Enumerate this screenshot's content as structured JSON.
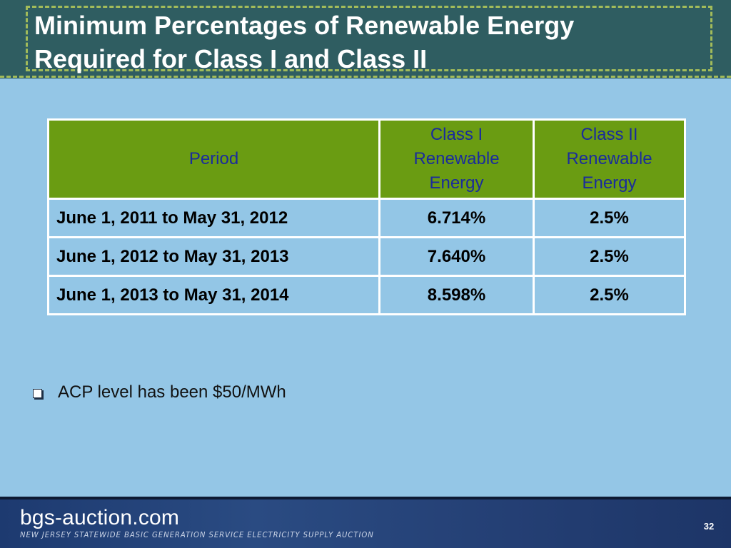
{
  "slide": {
    "title_line1": "Minimum Percentages of Renewable Energy",
    "title_line2": "Required for Class I and Class II"
  },
  "table": {
    "headers": [
      "Period",
      "Class I Renewable Energy",
      "Class II Renewable Energy"
    ],
    "rows": [
      [
        "June 1, 2011 to May 31, 2012",
        "6.714%",
        "2.5%"
      ],
      [
        "June 1, 2012 to May 31, 2013",
        "7.640%",
        "2.5%"
      ],
      [
        "June 1, 2013 to May 31, 2014",
        "8.598%",
        "2.5%"
      ]
    ]
  },
  "bullets": [
    {
      "icon": "square-bullet-icon",
      "text": "ACP level has been $50/MWh"
    }
  ],
  "footer": {
    "brand": "bgs-auction.com",
    "tagline": "NEW JERSEY STATEWIDE BASIC GENERATION SERVICE ELECTRICITY SUPPLY AUCTION",
    "page_number": "32"
  },
  "colors": {
    "background": "#94c6e6",
    "title_band": "#2f5d61",
    "title_frame": "#a2bb5a",
    "table_header": "#6a9c12",
    "header_text": "#1a2c9c",
    "footer": "#1d3a70"
  }
}
